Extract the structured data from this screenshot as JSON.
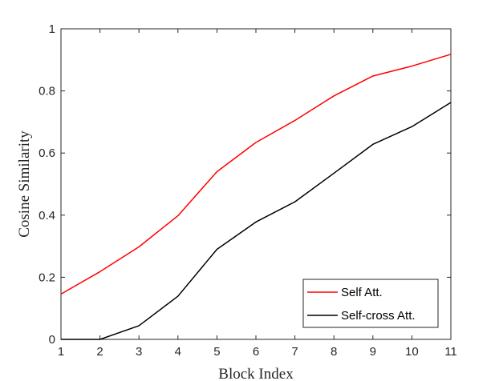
{
  "chart_data": {
    "type": "line",
    "title": "",
    "xlabel": "Block Index",
    "ylabel": "Cosine Similarity",
    "xlim": [
      1,
      11
    ],
    "ylim": [
      0,
      1
    ],
    "xticks": [
      "1",
      "2",
      "3",
      "4",
      "5",
      "6",
      "7",
      "8",
      "9",
      "10",
      "11"
    ],
    "yticks": [
      "0",
      "0.2",
      "0.4",
      "0.6",
      "0.8",
      "1"
    ],
    "x": [
      1,
      2,
      3,
      4,
      5,
      6,
      7,
      8,
      9,
      10,
      11
    ],
    "series": [
      {
        "name": "Self Att.",
        "color": "#ff0000",
        "values": [
          0.146,
          0.218,
          0.298,
          0.398,
          0.54,
          0.634,
          0.705,
          0.784,
          0.848,
          0.88,
          0.918
        ]
      },
      {
        "name": "Self-cross Att.",
        "color": "#000000",
        "values": [
          0.0,
          0.0,
          0.044,
          0.139,
          0.29,
          0.378,
          0.443,
          0.535,
          0.628,
          0.685,
          0.763
        ]
      }
    ],
    "grid": false,
    "legend_position": "bottom-right"
  }
}
